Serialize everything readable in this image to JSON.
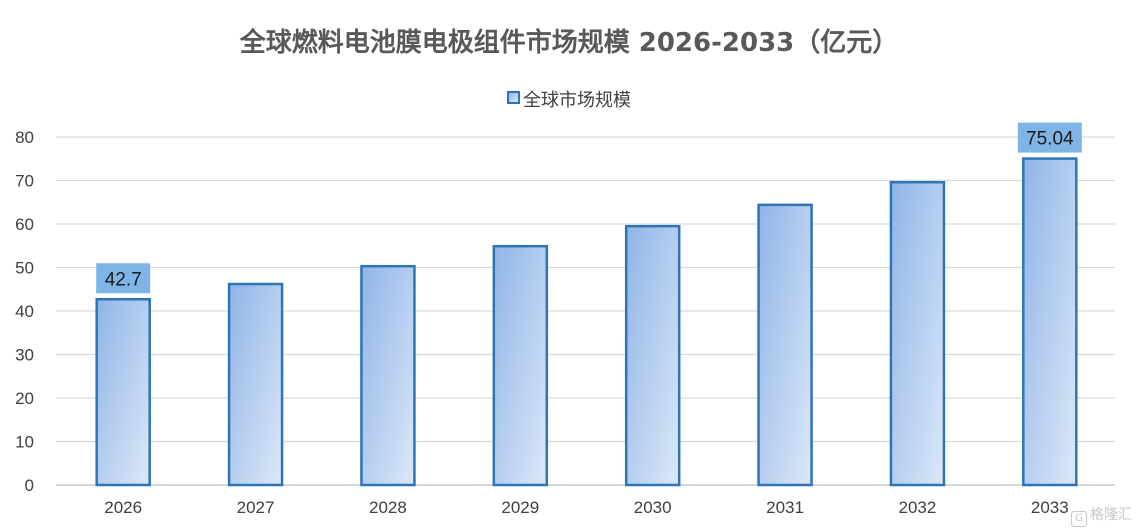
{
  "chart_data": {
    "type": "bar",
    "title": "全球燃料电池膜电极组件市场规模 2026-2033（亿元）",
    "categories": [
      "2026",
      "2027",
      "2028",
      "2029",
      "2030",
      "2031",
      "2032",
      "2033"
    ],
    "series": [
      {
        "name": "全球市场规模",
        "values": [
          42.7,
          46.2,
          50.3,
          54.9,
          59.5,
          64.4,
          69.6,
          75.04
        ]
      }
    ],
    "data_labels": [
      {
        "category": "2026",
        "text": "42.7"
      },
      {
        "category": "2033",
        "text": "75.04"
      }
    ],
    "ylim": [
      0,
      80
    ],
    "yticks": [
      0,
      10,
      20,
      30,
      40,
      50,
      60,
      70,
      80
    ],
    "xlabel": "",
    "ylabel": "",
    "grid": true,
    "legend_position": "top",
    "colors": {
      "bar_border": "#2e75b6",
      "bar_fill_dark": "#8fb4e8",
      "bar_fill_light": "#dce8f7",
      "label_bg": "#7fb4e6",
      "grid": "#d9d9d9",
      "axis_text": "#404040",
      "title": "#595959"
    }
  },
  "watermark": {
    "icon": "gelonghui-logo-icon",
    "text": "格隆汇"
  }
}
